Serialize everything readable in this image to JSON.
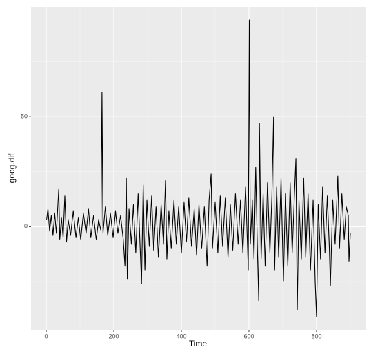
{
  "chart_data": {
    "type": "line",
    "x_label": "Time",
    "y_label": "goog.dif",
    "x": [
      1,
      5,
      10,
      15,
      20,
      25,
      30,
      37,
      40,
      45,
      50,
      55,
      60,
      65,
      72,
      80,
      88,
      95,
      102,
      110,
      118,
      125,
      132,
      140,
      148,
      155,
      162,
      165,
      168,
      175,
      182,
      190,
      198,
      205,
      212,
      220,
      228,
      233,
      237,
      240,
      245,
      252,
      258,
      265,
      272,
      278,
      282,
      287,
      292,
      298,
      305,
      312,
      318,
      325,
      332,
      340,
      347,
      353,
      357,
      363,
      370,
      378,
      385,
      392,
      400,
      408,
      415,
      422,
      430,
      438,
      445,
      452,
      460,
      468,
      476,
      482,
      488,
      492,
      500,
      508,
      515,
      522,
      530,
      538,
      545,
      552,
      560,
      568,
      575,
      582,
      590,
      596,
      598,
      601,
      604,
      610,
      615,
      620,
      625,
      629,
      631,
      636,
      642,
      648,
      655,
      662,
      668,
      673,
      676,
      682,
      688,
      695,
      702,
      708,
      715,
      722,
      728,
      735,
      739,
      743,
      748,
      755,
      762,
      768,
      775,
      782,
      790,
      796,
      800,
      805,
      812,
      818,
      825,
      832,
      838,
      841,
      848,
      855,
      863,
      868,
      875,
      882,
      888,
      894,
      896,
      900
    ],
    "values": [
      3,
      8,
      -2,
      5,
      -4,
      6,
      -3,
      17,
      -6,
      4,
      -5,
      14,
      -7,
      3,
      -4,
      7,
      -5,
      4,
      -6,
      6,
      -3,
      8,
      -5,
      5,
      -6,
      3,
      -2,
      61,
      -3,
      9,
      -4,
      6,
      -5,
      7,
      -3,
      5,
      -6,
      -18,
      22,
      -24,
      8,
      -8,
      10,
      -12,
      15,
      -10,
      -26,
      19,
      -20,
      12,
      -9,
      14,
      -11,
      9,
      -14,
      10,
      -8,
      21,
      -15,
      7,
      -10,
      12,
      -8,
      9,
      -12,
      11,
      -7,
      13,
      -9,
      8,
      -13,
      10,
      -10,
      9,
      -18,
      12,
      24,
      -10,
      11,
      -12,
      14,
      -9,
      13,
      -14,
      10,
      -11,
      15,
      -8,
      12,
      -12,
      18,
      -10,
      -20,
      94,
      -8,
      12,
      -15,
      27,
      -10,
      -34,
      47,
      -15,
      15,
      -18,
      20,
      -12,
      14,
      50,
      -20,
      18,
      -14,
      22,
      -25,
      15,
      -18,
      20,
      -12,
      16,
      31,
      -38,
      12,
      -15,
      22,
      -14,
      15,
      -20,
      12,
      -25,
      -41,
      10,
      -15,
      18,
      -12,
      14,
      -10,
      -27,
      12,
      -8,
      23,
      -10,
      15,
      -6,
      9,
      5,
      -16,
      -3
    ],
    "color": "#000000",
    "xlim": [
      -45,
      945
    ],
    "ylim": [
      -47,
      100
    ],
    "xticks": [
      0,
      200,
      400,
      600,
      800
    ],
    "yticks": [
      0,
      50
    ],
    "grid": true
  }
}
